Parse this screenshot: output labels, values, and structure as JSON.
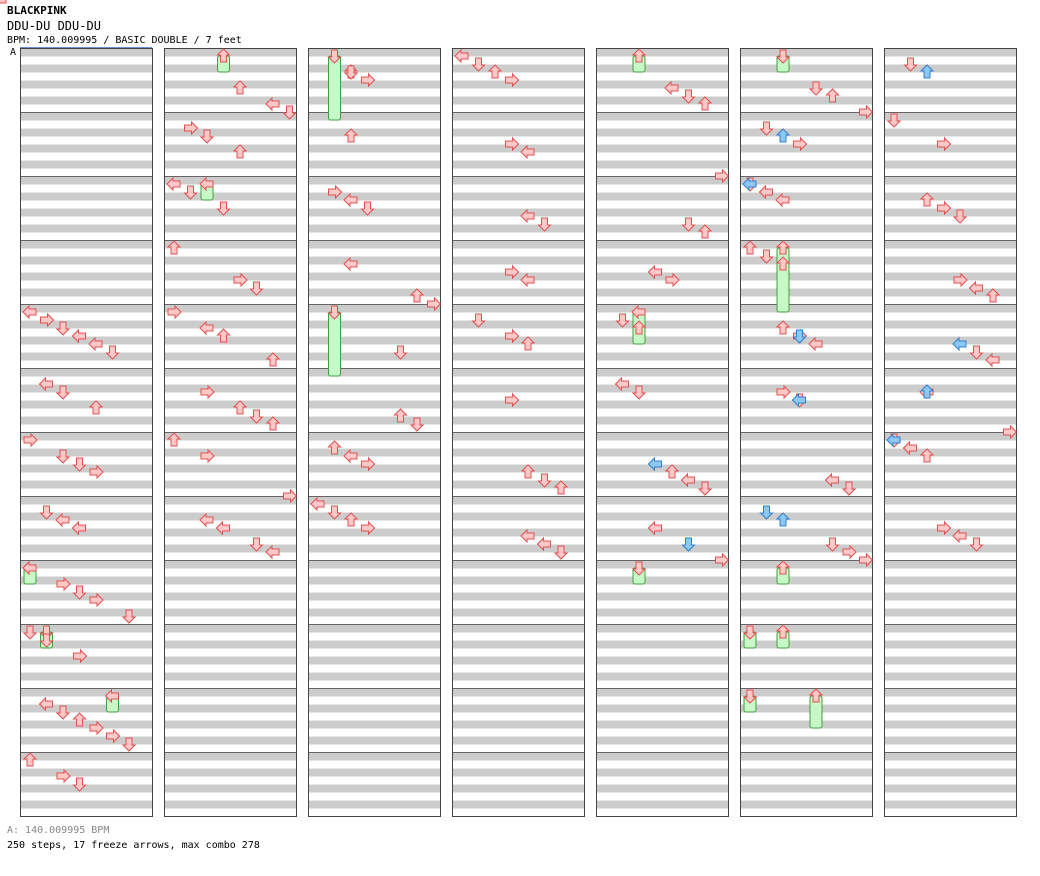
{
  "header": {
    "artist": "BLACKPINK",
    "song_title": "DDU-DU DDU-DU",
    "subtitle": "BPM: 140.009995 / BASIC DOUBLE / 7 feet"
  },
  "bpm_marker": "A",
  "footer": {
    "bpm_line": "A: 140.009995 BPM",
    "stats_line": "250 steps, 17 freeze arrows, max combo 278"
  },
  "colors": {
    "stripe": "#cccccc",
    "border": "#444444",
    "arrow_fill": "#ffc8c8",
    "arrow_stroke": "#e05050",
    "blue_fill": "#8ec8f0",
    "blue_stroke": "#3080d0",
    "freeze_fill": "#c8f8c8",
    "freeze_stroke": "#40a040"
  },
  "chart_data": {
    "type": "step-chart",
    "columns": 7,
    "measures_per_column": 12,
    "lanes": [
      "P1-left",
      "P1-down",
      "P1-up",
      "P1-right",
      "P2-left",
      "P2-down",
      "P2-up",
      "P2-right"
    ],
    "rows_per_measure": 8,
    "notes": [
      [
        0,
        4,
        0,
        "L"
      ],
      [
        0,
        4,
        1,
        "R"
      ],
      [
        0,
        4,
        2,
        "D"
      ],
      [
        0,
        4,
        3,
        "L"
      ],
      [
        0,
        4,
        4,
        "L"
      ],
      [
        0,
        4,
        5,
        "D"
      ],
      [
        0,
        5,
        1,
        "L"
      ],
      [
        0,
        5,
        2,
        "D"
      ],
      [
        0,
        5,
        4,
        "U"
      ],
      [
        0,
        6,
        0,
        "R"
      ],
      [
        0,
        6,
        2,
        "D"
      ],
      [
        0,
        6,
        3,
        "D"
      ],
      [
        0,
        6,
        4,
        "R"
      ],
      [
        0,
        7,
        1,
        "D"
      ],
      [
        0,
        7,
        2,
        "L"
      ],
      [
        0,
        7,
        3,
        "L"
      ],
      [
        0,
        8,
        0,
        "L"
      ],
      [
        0,
        8,
        2,
        "R"
      ],
      [
        0,
        8,
        3,
        "D"
      ],
      [
        0,
        8,
        4,
        "R"
      ],
      [
        0,
        8,
        6,
        "D"
      ],
      [
        0,
        9,
        0,
        "D"
      ],
      [
        0,
        9,
        1,
        "D"
      ],
      [
        0,
        9,
        3,
        "R"
      ],
      [
        0,
        10,
        1,
        "L"
      ],
      [
        0,
        10,
        2,
        "D"
      ],
      [
        0,
        10,
        3,
        "U"
      ],
      [
        0,
        10,
        4,
        "R"
      ],
      [
        0,
        10,
        5,
        "R"
      ],
      [
        0,
        10,
        6,
        "D"
      ],
      [
        0,
        11,
        0,
        "U"
      ],
      [
        0,
        11,
        2,
        "R"
      ],
      [
        0,
        11,
        3,
        "D"
      ],
      [
        0,
        11,
        7,
        "U"
      ],
      [
        1,
        0,
        4,
        "U"
      ],
      [
        1,
        0,
        6,
        "L"
      ],
      [
        1,
        0,
        7,
        "D"
      ],
      [
        1,
        1,
        1,
        "R"
      ],
      [
        1,
        1,
        2,
        "D"
      ],
      [
        1,
        1,
        4,
        "U"
      ],
      [
        1,
        2,
        0,
        "L"
      ],
      [
        1,
        2,
        1,
        "D"
      ],
      [
        1,
        2,
        3,
        "D"
      ],
      [
        1,
        3,
        0,
        "U"
      ],
      [
        1,
        3,
        4,
        "R"
      ],
      [
        1,
        3,
        5,
        "D"
      ],
      [
        1,
        4,
        0,
        "R"
      ],
      [
        1,
        4,
        2,
        "L"
      ],
      [
        1,
        4,
        3,
        "U"
      ],
      [
        1,
        4,
        6,
        "U"
      ],
      [
        1,
        5,
        2,
        "R"
      ],
      [
        1,
        5,
        4,
        "U"
      ],
      [
        1,
        5,
        5,
        "D"
      ],
      [
        1,
        5,
        6,
        "U"
      ],
      [
        1,
        6,
        0,
        "U"
      ],
      [
        1,
        6,
        2,
        "R"
      ],
      [
        1,
        6,
        7,
        "R"
      ],
      [
        1,
        7,
        2,
        "L"
      ],
      [
        1,
        7,
        3,
        "L"
      ],
      [
        1,
        7,
        5,
        "D"
      ],
      [
        1,
        7,
        6,
        "L"
      ],
      [
        2,
        0,
        2,
        "U"
      ],
      [
        2,
        0,
        3,
        "R"
      ],
      [
        2,
        0,
        2,
        "D"
      ],
      [
        2,
        1,
        2,
        "U"
      ],
      [
        2,
        2,
        1,
        "R"
      ],
      [
        2,
        2,
        2,
        "L"
      ],
      [
        2,
        2,
        3,
        "D"
      ],
      [
        2,
        3,
        2,
        "L"
      ],
      [
        2,
        3,
        6,
        "U"
      ],
      [
        2,
        3,
        7,
        "R"
      ],
      [
        2,
        4,
        5,
        "D"
      ],
      [
        2,
        5,
        5,
        "U"
      ],
      [
        2,
        5,
        6,
        "D"
      ],
      [
        2,
        6,
        1,
        "U"
      ],
      [
        2,
        6,
        2,
        "L"
      ],
      [
        2,
        6,
        3,
        "R"
      ],
      [
        2,
        7,
        0,
        "L"
      ],
      [
        2,
        7,
        1,
        "D"
      ],
      [
        2,
        7,
        2,
        "U"
      ],
      [
        2,
        7,
        3,
        "R"
      ],
      [
        3,
        0,
        0,
        "L"
      ],
      [
        3,
        0,
        1,
        "D"
      ],
      [
        3,
        0,
        2,
        "U"
      ],
      [
        3,
        0,
        3,
        "R"
      ],
      [
        3,
        1,
        3,
        "R"
      ],
      [
        3,
        1,
        4,
        "L"
      ],
      [
        3,
        2,
        4,
        "L"
      ],
      [
        3,
        2,
        5,
        "D"
      ],
      [
        3,
        3,
        3,
        "R"
      ],
      [
        3,
        3,
        4,
        "L"
      ],
      [
        3,
        4,
        1,
        "D"
      ],
      [
        3,
        4,
        3,
        "R"
      ],
      [
        3,
        4,
        4,
        "U"
      ],
      [
        3,
        5,
        3,
        "R"
      ],
      [
        3,
        6,
        4,
        "U"
      ],
      [
        3,
        6,
        5,
        "D"
      ],
      [
        3,
        6,
        6,
        "U"
      ],
      [
        3,
        7,
        4,
        "L"
      ],
      [
        3,
        7,
        5,
        "L"
      ],
      [
        3,
        7,
        6,
        "D"
      ],
      [
        4,
        0,
        6,
        "U"
      ],
      [
        4,
        0,
        4,
        "L"
      ],
      [
        4,
        0,
        5,
        "D"
      ],
      [
        4,
        1,
        7,
        "R"
      ],
      [
        4,
        2,
        5,
        "D"
      ],
      [
        4,
        2,
        6,
        "U"
      ],
      [
        4,
        3,
        4,
        "R"
      ],
      [
        4,
        3,
        3,
        "L"
      ],
      [
        4,
        4,
        1,
        "D"
      ],
      [
        4,
        4,
        2,
        "U"
      ],
      [
        4,
        5,
        1,
        "L"
      ],
      [
        4,
        5,
        2,
        "D"
      ],
      [
        4,
        6,
        4,
        "U"
      ],
      [
        4,
        6,
        5,
        "L"
      ],
      [
        4,
        6,
        6,
        "D"
      ],
      [
        4,
        7,
        7,
        "R"
      ],
      [
        4,
        7,
        3,
        "L"
      ],
      [
        5,
        0,
        7,
        "R"
      ],
      [
        5,
        0,
        5,
        "U"
      ],
      [
        5,
        0,
        4,
        "D"
      ],
      [
        5,
        1,
        3,
        "R"
      ],
      [
        5,
        1,
        2,
        "U"
      ],
      [
        5,
        1,
        1,
        "D"
      ],
      [
        5,
        2,
        2,
        "L"
      ],
      [
        5,
        2,
        1,
        "L"
      ],
      [
        5,
        2,
        0,
        "D"
      ],
      [
        5,
        3,
        2,
        "U"
      ],
      [
        5,
        3,
        1,
        "D"
      ],
      [
        5,
        3,
        0,
        "U"
      ],
      [
        5,
        4,
        3,
        "R"
      ],
      [
        5,
        4,
        4,
        "L"
      ],
      [
        5,
        4,
        2,
        "U"
      ],
      [
        5,
        5,
        3,
        "D"
      ],
      [
        5,
        5,
        2,
        "R"
      ],
      [
        5,
        6,
        5,
        "L"
      ],
      [
        5,
        6,
        6,
        "D"
      ],
      [
        5,
        7,
        7,
        "R"
      ],
      [
        5,
        7,
        6,
        "R"
      ],
      [
        5,
        7,
        5,
        "D"
      ],
      [
        6,
        0,
        1,
        "D"
      ],
      [
        6,
        0,
        2,
        "U"
      ],
      [
        6,
        1,
        3,
        "R"
      ],
      [
        6,
        1,
        0,
        "D"
      ],
      [
        6,
        2,
        2,
        "U"
      ],
      [
        6,
        2,
        3,
        "R"
      ],
      [
        6,
        2,
        4,
        "D"
      ],
      [
        6,
        3,
        4,
        "R"
      ],
      [
        6,
        3,
        5,
        "L"
      ],
      [
        6,
        3,
        6,
        "U"
      ],
      [
        6,
        4,
        5,
        "D"
      ],
      [
        6,
        4,
        6,
        "L"
      ],
      [
        6,
        5,
        7,
        "R"
      ],
      [
        6,
        5,
        2,
        "L"
      ],
      [
        6,
        6,
        0,
        "D"
      ],
      [
        6,
        6,
        1,
        "L"
      ],
      [
        6,
        6,
        2,
        "U"
      ],
      [
        6,
        7,
        3,
        "R"
      ],
      [
        6,
        7,
        4,
        "L"
      ],
      [
        6,
        7,
        5,
        "D"
      ],
      [
        7,
        0,
        1,
        "D"
      ],
      [
        7,
        0,
        2,
        "R"
      ],
      [
        7,
        1,
        3,
        "U"
      ],
      [
        7,
        1,
        4,
        "L"
      ],
      [
        7,
        2,
        5,
        "D"
      ],
      [
        7,
        2,
        6,
        "U"
      ],
      [
        7,
        3,
        4,
        "R"
      ],
      [
        7,
        3,
        3,
        "L"
      ],
      [
        7,
        4,
        4,
        "L"
      ],
      [
        7,
        4,
        5,
        "D"
      ],
      [
        7,
        5,
        4,
        "L"
      ],
      [
        7,
        5,
        5,
        "R"
      ],
      [
        7,
        6,
        6,
        "D"
      ],
      [
        7,
        6,
        7,
        "L"
      ],
      [
        7,
        7,
        3,
        "U"
      ],
      [
        7,
        7,
        2,
        "L"
      ]
    ],
    "blue_notes": [
      [
        5,
        1,
        2,
        "U"
      ],
      [
        5,
        2,
        0,
        "L"
      ],
      [
        5,
        4,
        3,
        "D"
      ],
      [
        5,
        5,
        3,
        "L"
      ],
      [
        5,
        7,
        1,
        "D"
      ],
      [
        5,
        7,
        2,
        "U"
      ],
      [
        6,
        0,
        2,
        "U"
      ],
      [
        6,
        4,
        4,
        "L"
      ],
      [
        6,
        6,
        0,
        "L"
      ],
      [
        6,
        5,
        2,
        "U"
      ],
      [
        4,
        6,
        3,
        "L"
      ],
      [
        4,
        7,
        5,
        "D"
      ]
    ],
    "freezes": [
      [
        0,
        8,
        0,
        1,
        "L"
      ],
      [
        0,
        9,
        1,
        1,
        "D"
      ],
      [
        0,
        10,
        5,
        1,
        "L"
      ],
      [
        1,
        0,
        3,
        1,
        "U"
      ],
      [
        1,
        2,
        2,
        1,
        "L"
      ],
      [
        2,
        0,
        1,
        4,
        "D"
      ],
      [
        2,
        4,
        1,
        4,
        "D"
      ],
      [
        4,
        0,
        2,
        1,
        "U"
      ],
      [
        4,
        4,
        2,
        2,
        "L"
      ],
      [
        4,
        8,
        2,
        1,
        "D"
      ],
      [
        5,
        0,
        2,
        1,
        "D"
      ],
      [
        5,
        3,
        2,
        4,
        "U"
      ],
      [
        5,
        8,
        2,
        1,
        "U"
      ],
      [
        5,
        9,
        0,
        1,
        "D"
      ],
      [
        5,
        9,
        2,
        1,
        "U"
      ],
      [
        5,
        10,
        0,
        1,
        "D"
      ],
      [
        5,
        10,
        4,
        2,
        "U"
      ]
    ]
  }
}
